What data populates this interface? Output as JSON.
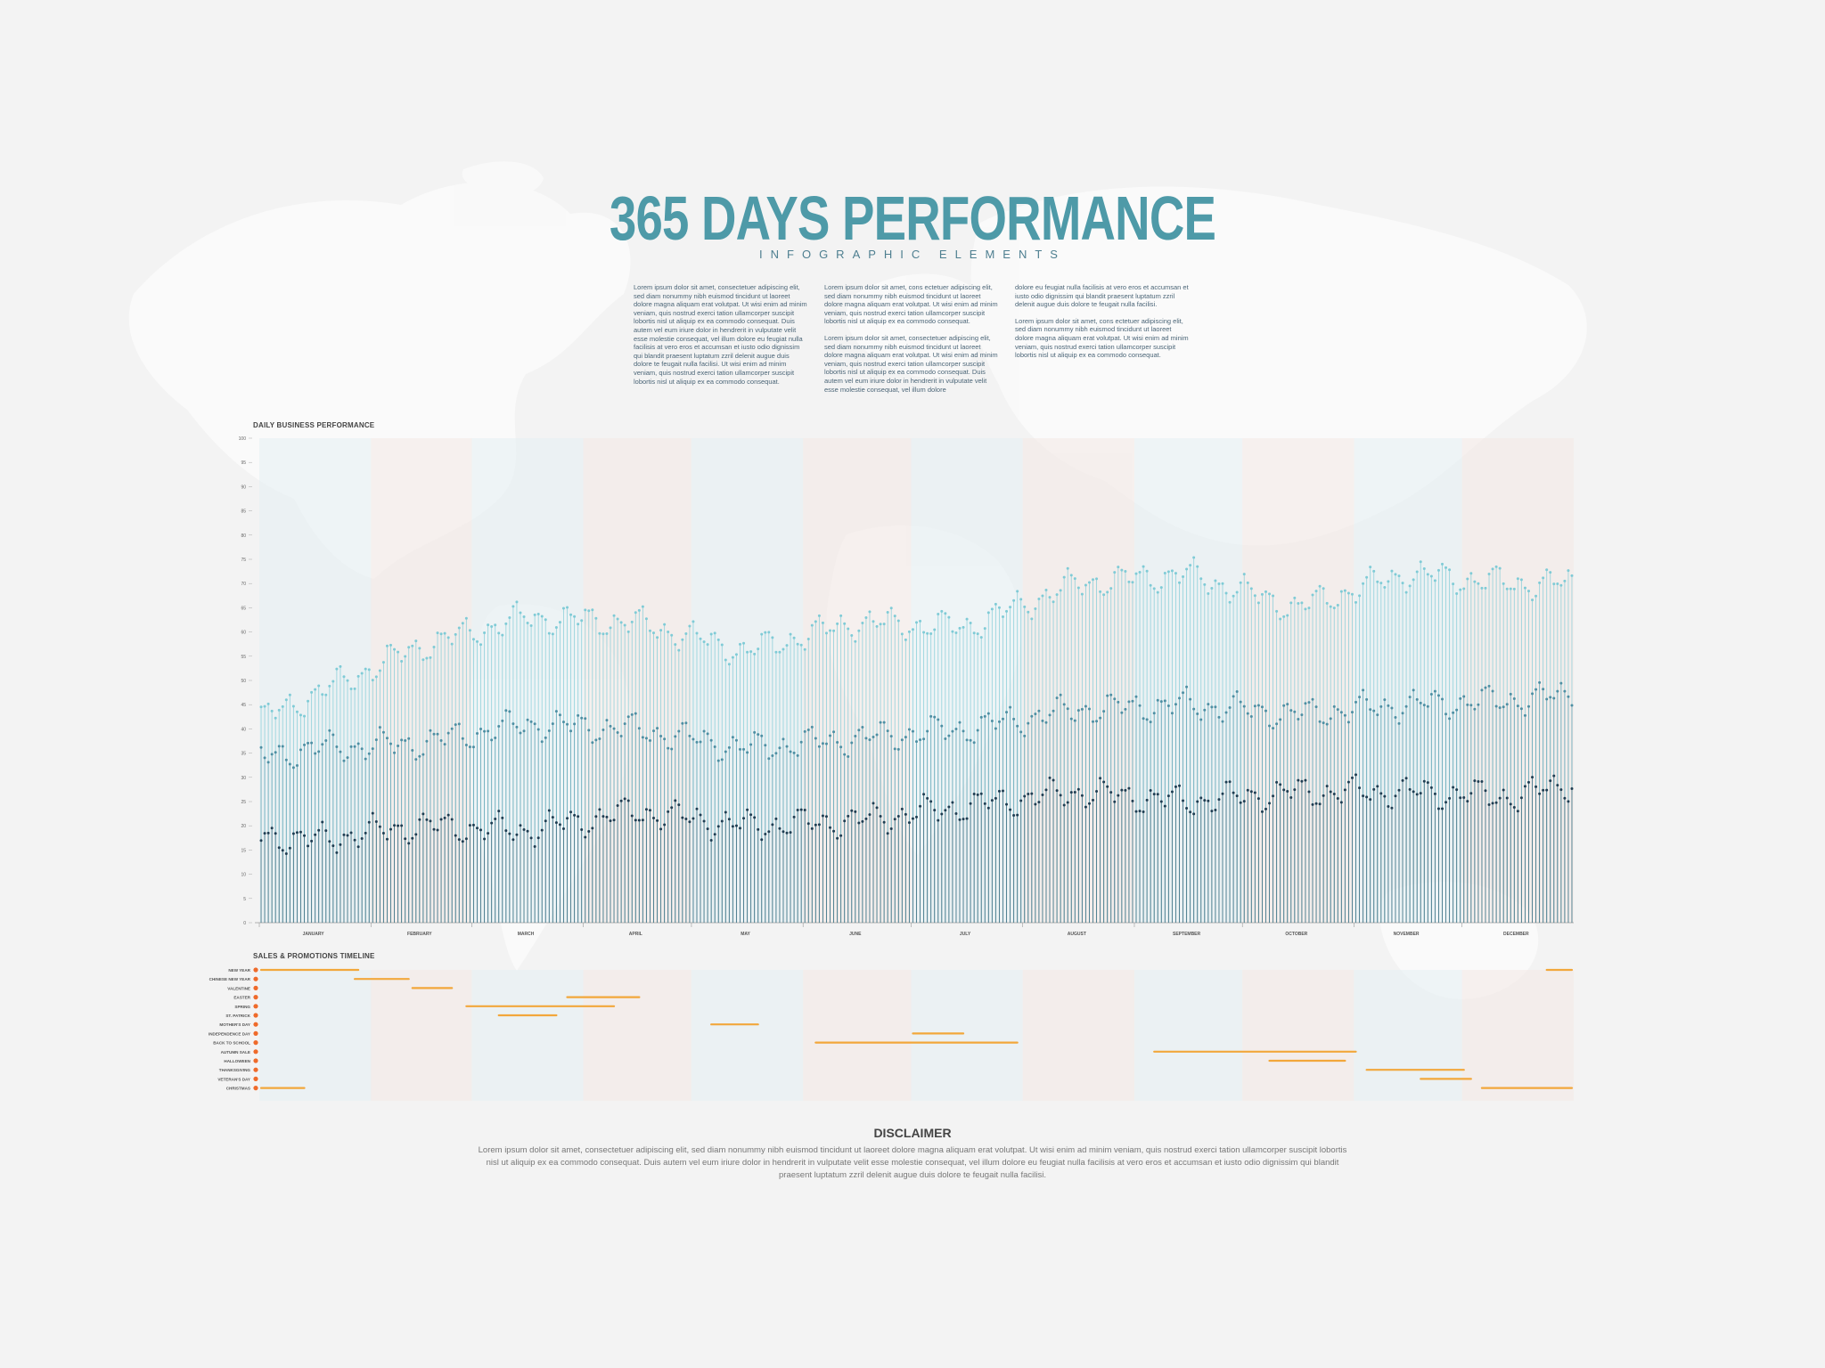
{
  "header": {
    "title": "365 DAYS PERFORMANCE",
    "subtitle": "INFOGRAPHIC ELEMENTS"
  },
  "intro": {
    "col1": [
      "Lorem ipsum dolor sit amet, consectetuer adipiscing elit, sed diam nonummy nibh euismod tincidunt ut laoreet dolore magna aliquam erat volutpat. Ut wisi enim ad minim veniam, quis nostrud exerci tation ullamcorper suscipit lobortis nisl ut aliquip ex ea commodo consequat. Duis autem vel eum iriure dolor in hendrerit in vulputate velit esse molestie consequat, vel illum dolore eu feugiat nulla facilisis at vero eros et accumsan et iusto odio dignissim qui blandit praesent luptatum zzril delenit augue duis dolore te feugait nulla facilisi. Ut wisi enim ad minim veniam, quis nostrud exerci tation ullamcorper suscipit lobortis nisl ut aliquip ex ea commodo consequat."
    ],
    "col2": [
      "Lorem ipsum dolor sit amet, cons ectetuer adipiscing elit, sed diam nonummy nibh euismod tincidunt ut laoreet dolore magna aliquam erat volutpat. Ut wisi enim ad minim veniam, quis nostrud exerci tation ullamcorper suscipit lobortis nisl ut aliquip ex ea commodo consequat.",
      "Lorem ipsum dolor sit amet, consectetuer adipiscing elit, sed diam nonummy nibh euismod tincidunt ut laoreet dolore magna aliquam erat volutpat. Ut wisi enim ad minim veniam, quis nostrud exerci tation ullamcorper suscipit lobortis nisl ut aliquip ex ea commodo consequat. Duis autem vel eum iriure dolor in hendrerit in vulputate velit esse molestie consequat, vel illum dolore"
    ],
    "col3": [
      "dolore eu feugiat nulla facilisis at vero eros et accumsan et iusto odio dignissim qui blandit praesent luptatum zzril delenit augue duis dolore te feugait nulla facilisi.",
      "Lorem ipsum dolor sit amet, cons ectetuer adipiscing elit, sed diam nonummy nibh euismod tincidunt ut laoreet dolore magna aliquam erat volutpat. Ut wisi enim ad minim veniam, quis nostrud exerci tation ullamcorper suscipit lobortis nisl ut aliquip ex ea commodo consequat."
    ]
  },
  "colors": {
    "series_high": "#7fcbd6",
    "series_mid": "#4d8fa3",
    "series_low": "#1e3d52",
    "promo_bar": "#f2a73b",
    "promo_dot": "#ef6a2a",
    "month_tint_blue": "#e4eef2",
    "month_tint_pink": "#f3e8e4"
  },
  "chart_data": [
    {
      "type": "scatter",
      "title": "DAILY BUSINESS PERFORMANCE",
      "xlabel": "",
      "ylabel": "",
      "ylim": [
        0,
        100
      ],
      "y_ticks": [
        0,
        5,
        10,
        15,
        20,
        25,
        30,
        35,
        40,
        45,
        50,
        55,
        60,
        65,
        70,
        75,
        80,
        85,
        90,
        95,
        100
      ],
      "month_labels": [
        "JANUARY",
        "FEBRUARY",
        "MARCH",
        "APRIL",
        "MAY",
        "JUNE",
        "JULY",
        "AUGUST",
        "SEPTEMBER",
        "OCTOBER",
        "NOVEMBER",
        "DECEMBER"
      ],
      "month_days": [
        31,
        28,
        31,
        30,
        31,
        30,
        31,
        31,
        30,
        31,
        30,
        31
      ],
      "series_monthly_approx": [
        {
          "id": "high",
          "start": 42,
          "monthly": [
            47,
            57,
            63,
            62,
            56,
            62,
            61,
            70,
            72,
            65,
            72,
            70
          ],
          "end": 70
        },
        {
          "id": "mid",
          "start": 34,
          "monthly": [
            36,
            37,
            41,
            40,
            36,
            38,
            40,
            44,
            45,
            43,
            45,
            46
          ],
          "end": 47
        },
        {
          "id": "low",
          "start": 18,
          "monthly": [
            17,
            20,
            19,
            23,
            20,
            21,
            24,
            27,
            25,
            27,
            27,
            26
          ],
          "end": 29
        }
      ],
      "daily_jitter_range": 4
    },
    {
      "type": "timeline",
      "title": "SALES & PROMOTIONS TIMELINE",
      "events": [
        {
          "label": "NEW YEAR",
          "segments": [
            [
              1,
              28
            ],
            [
              358,
              365
            ]
          ]
        },
        {
          "label": "CHINESE NEW YEAR",
          "segments": [
            [
              27,
              42
            ]
          ]
        },
        {
          "label": "VALENTINE",
          "segments": [
            [
              43,
              54
            ]
          ]
        },
        {
          "label": "EASTER",
          "segments": [
            [
              86,
              106
            ]
          ]
        },
        {
          "label": "SPRING",
          "segments": [
            [
              58,
              99
            ]
          ]
        },
        {
          "label": "ST. PATRICK",
          "segments": [
            [
              67,
              83
            ]
          ]
        },
        {
          "label": "MOTHER'S DAY",
          "segments": [
            [
              126,
              139
            ]
          ]
        },
        {
          "label": "INDEPENDENCE DAY",
          "segments": [
            [
              182,
              196
            ]
          ]
        },
        {
          "label": "BACK TO SCHOOL",
          "segments": [
            [
              155,
              211
            ]
          ]
        },
        {
          "label": "AUTUMN SALE",
          "segments": [
            [
              249,
              305
            ]
          ]
        },
        {
          "label": "HALLOWEEN",
          "segments": [
            [
              281,
              302
            ]
          ]
        },
        {
          "label": "THANKSGIVING",
          "segments": [
            [
              308,
              335
            ]
          ]
        },
        {
          "label": "VETERAN'S DAY",
          "segments": [
            [
              323,
              337
            ]
          ]
        },
        {
          "label": "CHRISTMAS",
          "segments": [
            [
              340,
              365
            ],
            [
              1,
              13
            ]
          ]
        }
      ]
    }
  ],
  "disclaimer": {
    "title": "DISCLAIMER",
    "text": "Lorem ipsum dolor sit amet, consectetuer adipiscing elit, sed diam nonummy nibh euismod tincidunt ut laoreet dolore magna aliquam erat volutpat. Ut wisi enim ad minim veniam, quis nostrud exerci tation ullamcorper suscipit lobortis nisl ut aliquip ex ea commodo consequat. Duis autem vel eum iriure dolor in hendrerit in vulputate velit esse molestie consequat, vel illum dolore eu feugiat nulla facilisis at vero eros et accumsan et iusto odio dignissim qui blandit praesent luptatum zzril delenit augue duis dolore te feugait nulla facilisi."
  }
}
